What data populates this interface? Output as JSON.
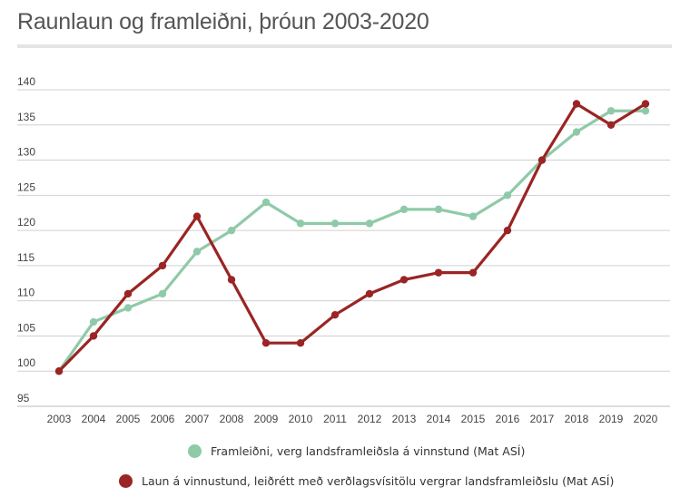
{
  "chart_data": {
    "type": "line",
    "title": "Raunlaun og framleiðni, þróun 2003-2020",
    "xlabel": "",
    "ylabel": "",
    "categories": [
      "2003",
      "2004",
      "2005",
      "2006",
      "2007",
      "2008",
      "2009",
      "2010",
      "2011",
      "2012",
      "2013",
      "2014",
      "2015",
      "2016",
      "2017",
      "2018",
      "2019",
      "2020"
    ],
    "ylim": [
      95,
      140
    ],
    "yticks": [
      95,
      100,
      105,
      110,
      115,
      120,
      125,
      130,
      135,
      140
    ],
    "grid": true,
    "legend_position": "bottom",
    "series": [
      {
        "name": "Framleiðni, verg landsframleiðsla á vinnstund (Mat ASÍ)",
        "color": "#8fcaa8",
        "values": [
          100,
          107,
          109,
          111,
          117,
          120,
          124,
          121,
          121,
          121,
          123,
          123,
          122,
          125,
          130,
          134,
          137,
          137
        ]
      },
      {
        "name": "Laun á vinnustund, leiðrétt með verðlagsvísitölu vergrar landsframleiðslu (Mat ASÍ)",
        "color": "#9b2424",
        "values": [
          100,
          105,
          111,
          115,
          122,
          113,
          104,
          104,
          108,
          111,
          113,
          114,
          114,
          120,
          130,
          138,
          135,
          138
        ]
      }
    ]
  }
}
